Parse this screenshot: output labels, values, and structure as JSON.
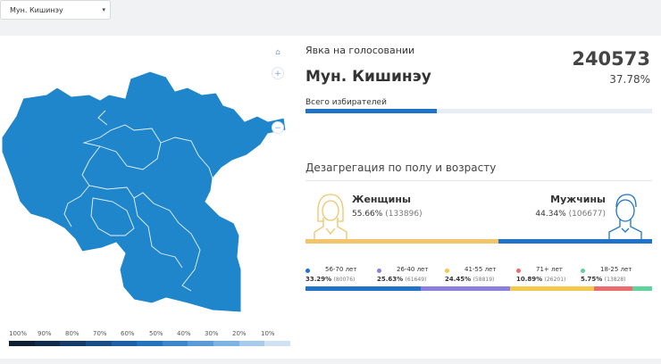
{
  "region_select": {
    "value": "Мун. Кишинэу",
    "arrow": "▾"
  },
  "map": {
    "controls": [
      {
        "name": "home-icon",
        "glyph": "⌂"
      },
      {
        "name": "zoom-in-icon",
        "glyph": "+"
      },
      {
        "name": "zoom-out-icon",
        "glyph": "−"
      }
    ],
    "legend_labels": [
      "100%",
      "90%",
      "80%",
      "70%",
      "60%",
      "50%",
      "40%",
      "30%",
      "20%",
      "10%"
    ],
    "legend_colors": [
      "#0c1f33",
      "#102c4c",
      "#143b66",
      "#1a4d86",
      "#1f5fa5",
      "#2572bd",
      "#3d86cc",
      "#5a9bd7",
      "#7fb3e2",
      "#a6cbeb",
      "#cfe2f4"
    ],
    "fill_color": "#1f86cc"
  },
  "turnout": {
    "title": "Явка на голосовании",
    "region": "Мун. Кишинэу",
    "count": "240573",
    "percent": "37.78%",
    "percent_value": 37.78,
    "voters_label": "Всего избирателей"
  },
  "disaggregation": {
    "title": "Дезагрегация по полу и возрасту",
    "women": {
      "label": "Женщины",
      "percent": "55.66%",
      "count": "(133896)",
      "value": 55.66,
      "color": "#f2c46b"
    },
    "men": {
      "label": "Мужчины",
      "percent": "44.34%",
      "count": "(106677)",
      "value": 44.34,
      "color": "#1f74c9"
    },
    "age_groups": [
      {
        "label": "56-70 лет",
        "percent": "33.29%",
        "count": "(80076)",
        "value": 33.29,
        "color": "#1f74c9"
      },
      {
        "label": "26-40 лет",
        "percent": "25.63%",
        "count": "(61649)",
        "value": 25.63,
        "color": "#8a7fe0"
      },
      {
        "label": "41-55 лет",
        "percent": "24.45%",
        "count": "(58819)",
        "value": 24.45,
        "color": "#f2c94c"
      },
      {
        "label": "71+ лет",
        "percent": "10.89%",
        "count": "(26201)",
        "value": 10.89,
        "color": "#ef6b6b"
      },
      {
        "label": "18-25 лет",
        "percent": "5.75%",
        "count": "(13828)",
        "value": 5.75,
        "color": "#5fd49a"
      }
    ]
  }
}
